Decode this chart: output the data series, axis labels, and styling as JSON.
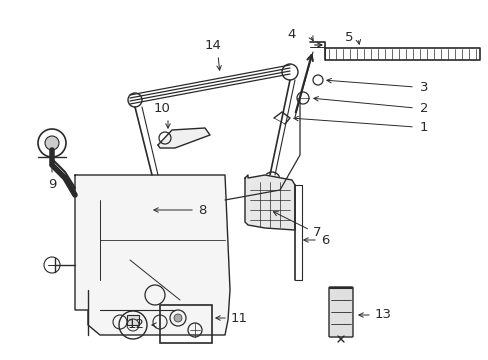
{
  "bg_color": "#ffffff",
  "line_color": "#2a2a2a",
  "label_color": "#000000",
  "figsize": [
    4.89,
    3.6
  ],
  "dpi": 100,
  "label_fontsize": 9.5
}
